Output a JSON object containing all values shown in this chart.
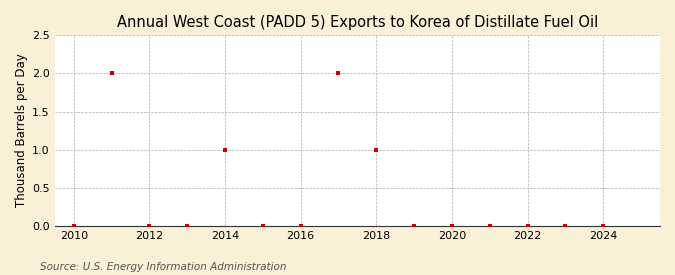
{
  "title": "Annual West Coast (PADD 5) Exports to Korea of Distillate Fuel Oil",
  "ylabel": "Thousand Barrels per Day",
  "source": "Source: U.S. Energy Information Administration",
  "background_color": "#faefd7",
  "plot_bg_color": "#ffffff",
  "years": [
    2010,
    2011,
    2012,
    2013,
    2014,
    2015,
    2016,
    2017,
    2018,
    2019,
    2020,
    2021,
    2022,
    2023,
    2024
  ],
  "values": [
    0.0,
    2.0,
    0.0,
    0.0,
    1.0,
    0.0,
    0.0,
    2.0,
    1.0,
    0.0,
    0.0,
    0.0,
    0.0,
    0.0,
    0.0
  ],
  "marker_color": "#cc0000",
  "marker": "s",
  "marker_size": 3.5,
  "xlim": [
    2009.5,
    2025.5
  ],
  "ylim": [
    0.0,
    2.5
  ],
  "yticks": [
    0.0,
    0.5,
    1.0,
    1.5,
    2.0,
    2.5
  ],
  "xticks": [
    2010,
    2012,
    2014,
    2016,
    2018,
    2020,
    2022,
    2024
  ],
  "grid_color": "#aaaaaa",
  "grid_style": "--",
  "title_fontsize": 10.5,
  "label_fontsize": 8.5,
  "tick_fontsize": 8,
  "source_fontsize": 7.5
}
